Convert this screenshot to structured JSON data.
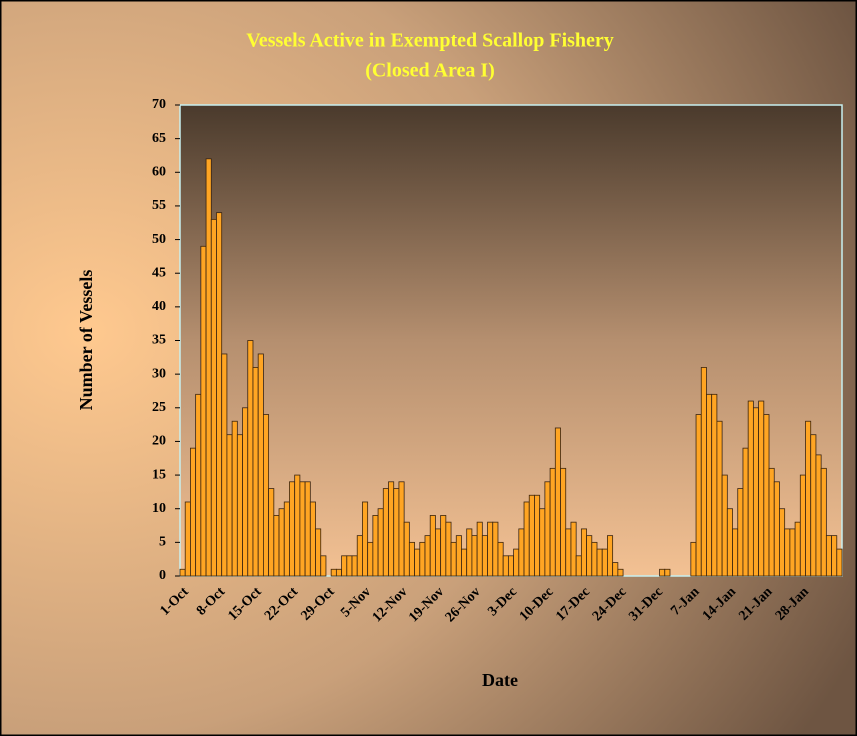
{
  "chart_data": {
    "type": "bar",
    "title": "Vessels Active in Exempted Scallop Fishery",
    "subtitle": "(Closed Area I)",
    "x_label": "Date",
    "y_label": "Number of Vessels",
    "color": "#ffa523",
    "ylim": [
      0,
      70
    ],
    "yticks": [
      0,
      5,
      10,
      15,
      20,
      25,
      30,
      35,
      40,
      45,
      50,
      55,
      60,
      65,
      70
    ],
    "grid": false,
    "categories": [
      "1-Oct",
      null,
      null,
      null,
      null,
      null,
      null,
      "8-Oct",
      null,
      null,
      null,
      null,
      null,
      null,
      "15-Oct",
      null,
      null,
      null,
      null,
      null,
      null,
      "22-Oct",
      null,
      null,
      null,
      null,
      null,
      null,
      "29-Oct",
      null,
      null,
      null,
      null,
      null,
      null,
      "5-Nov",
      null,
      null,
      null,
      null,
      null,
      null,
      "12-Nov",
      null,
      null,
      null,
      null,
      null,
      null,
      "19-Nov",
      null,
      null,
      null,
      null,
      null,
      null,
      "26-Nov",
      null,
      null,
      null,
      null,
      null,
      null,
      "3-Dec",
      null,
      null,
      null,
      null,
      null,
      null,
      "10-Dec",
      null,
      null,
      null,
      null,
      null,
      null,
      "17-Dec",
      null,
      null,
      null,
      null,
      null,
      null,
      "24-Dec",
      null,
      null,
      null,
      null,
      null,
      null,
      "31-Dec",
      null,
      null,
      null,
      null,
      null,
      null,
      "7-Jan",
      null,
      null,
      null,
      null,
      null,
      null,
      "14-Jan",
      null,
      null,
      null,
      null,
      null,
      null,
      "21-Jan",
      null,
      null,
      null,
      null,
      null,
      null,
      "28-Jan",
      null,
      null,
      null,
      null,
      null,
      null,
      null
    ],
    "values": [
      1,
      11,
      19,
      27,
      49,
      62,
      53,
      54,
      33,
      21,
      23,
      21,
      25,
      35,
      31,
      33,
      24,
      13,
      9,
      10,
      11,
      14,
      15,
      14,
      14,
      11,
      7,
      3,
      0,
      1,
      1,
      3,
      3,
      3,
      6,
      11,
      5,
      9,
      10,
      13,
      14,
      13,
      14,
      8,
      5,
      4,
      5,
      6,
      9,
      7,
      9,
      8,
      5,
      6,
      4,
      7,
      6,
      8,
      6,
      8,
      8,
      5,
      3,
      3,
      4,
      7,
      11,
      12,
      12,
      10,
      14,
      16,
      22,
      16,
      7,
      8,
      3,
      7,
      6,
      5,
      4,
      4,
      6,
      2,
      1,
      0,
      0,
      0,
      0,
      0,
      0,
      0,
      1,
      1,
      0,
      0,
      0,
      0,
      5,
      24,
      31,
      27,
      27,
      23,
      15,
      10,
      7,
      13,
      19,
      26,
      25,
      26,
      24,
      16,
      14,
      10,
      7,
      7,
      8,
      15,
      23,
      21,
      18,
      16,
      6,
      6,
      4
    ]
  }
}
